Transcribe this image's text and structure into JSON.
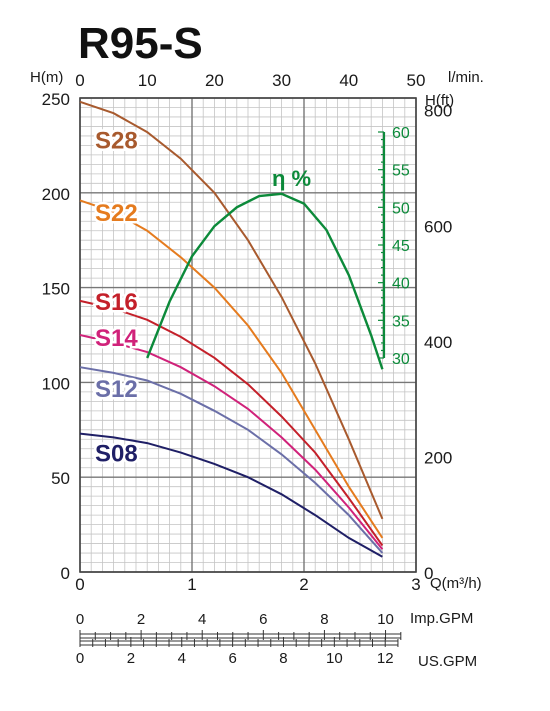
{
  "chart_data": {
    "type": "line",
    "title": "R95-S",
    "xlabel": "Q(m³/h)",
    "x_top_label": "l/min.",
    "ylabel_left": "H(m)",
    "ylabel_right": "H(ft)",
    "xlim": [
      0,
      3
    ],
    "ylim": [
      0,
      250
    ],
    "x_ticks": [
      "0",
      "1",
      "2",
      "3"
    ],
    "y_ticks": [
      "0",
      "50",
      "100",
      "150",
      "200",
      "250"
    ],
    "lmin_ticks": [
      "0",
      "10",
      "20",
      "30",
      "40",
      "50"
    ],
    "ft_ticks": [
      "0",
      "200",
      "400",
      "600",
      "800"
    ],
    "imp_gpm": {
      "label": "Imp.GPM",
      "ticks": [
        "0",
        "2",
        "4",
        "6",
        "8",
        "10"
      ]
    },
    "us_gpm": {
      "label": "US.GPM",
      "ticks": [
        "0",
        "2",
        "4",
        "6",
        "8",
        "10",
        "12"
      ]
    },
    "grid": true,
    "series": [
      {
        "name": "S28",
        "color": "#a85a2e",
        "x": [
          0,
          0.3,
          0.6,
          0.9,
          1.2,
          1.5,
          1.8,
          2.1,
          2.4,
          2.7
        ],
        "y": [
          248,
          242,
          232,
          218,
          200,
          175,
          145,
          110,
          70,
          28
        ]
      },
      {
        "name": "S22",
        "color": "#e57b1e",
        "x": [
          0,
          0.3,
          0.6,
          0.9,
          1.2,
          1.5,
          1.8,
          2.1,
          2.4,
          2.7
        ],
        "y": [
          196,
          190,
          180,
          166,
          150,
          130,
          105,
          75,
          45,
          18
        ]
      },
      {
        "name": "S16",
        "color": "#c4202a",
        "x": [
          0,
          0.3,
          0.6,
          0.9,
          1.2,
          1.5,
          1.8,
          2.1,
          2.4,
          2.7
        ],
        "y": [
          143,
          139,
          133,
          124,
          113,
          99,
          82,
          63,
          39,
          14
        ]
      },
      {
        "name": "S14",
        "color": "#d0227a",
        "x": [
          0,
          0.3,
          0.6,
          0.9,
          1.2,
          1.5,
          1.8,
          2.1,
          2.4,
          2.7
        ],
        "y": [
          125,
          121,
          116,
          108,
          98,
          86,
          71,
          54,
          34,
          12
        ]
      },
      {
        "name": "S12",
        "color": "#6b6fa8",
        "x": [
          0,
          0.3,
          0.6,
          0.9,
          1.2,
          1.5,
          1.8,
          2.1,
          2.4,
          2.7
        ],
        "y": [
          108,
          105,
          101,
          94,
          85,
          75,
          62,
          47,
          30,
          10
        ]
      },
      {
        "name": "S08",
        "color": "#1f1f66",
        "x": [
          0,
          0.3,
          0.6,
          0.9,
          1.2,
          1.5,
          1.8,
          2.1,
          2.4,
          2.7
        ],
        "y": [
          73,
          71,
          68,
          63,
          57,
          50,
          41,
          30,
          18,
          8
        ]
      }
    ],
    "efficiency": {
      "label": "η %",
      "color": "#0c8a3a",
      "axis_ticks": [
        "30",
        "35",
        "40",
        "45",
        "50",
        "55",
        "60"
      ],
      "axis_range": [
        30,
        60
      ],
      "x": [
        0.6,
        0.8,
        1.0,
        1.2,
        1.4,
        1.6,
        1.8,
        2.0,
        2.2,
        2.4,
        2.6,
        2.7
      ],
      "y": [
        30,
        37.5,
        43.5,
        47.5,
        50,
        51.5,
        51.8,
        50.5,
        47,
        41,
        33,
        28.5
      ]
    },
    "curve_labels": [
      "S28",
      "S22",
      "S16",
      "S14",
      "S12",
      "S08"
    ]
  }
}
